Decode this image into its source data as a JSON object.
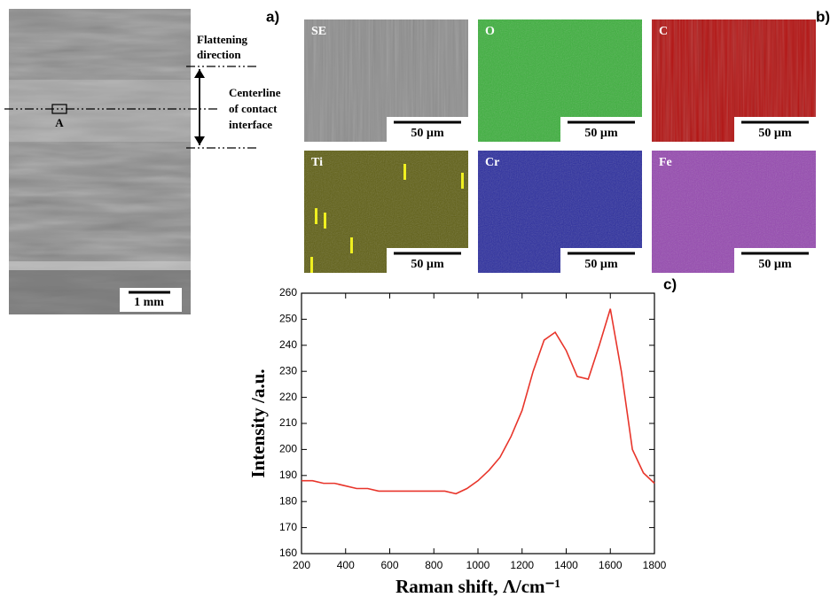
{
  "figure": {
    "panel_labels": [
      "a)",
      "b)",
      "c)"
    ],
    "sem": {
      "marker": "A",
      "scale_bar": "1 mm"
    },
    "annotations": {
      "flattening": [
        "Flattening",
        "direction"
      ],
      "centerline": [
        "Centerline",
        "of contact",
        "interface"
      ]
    },
    "maps": [
      {
        "label": "SE",
        "scale_bar": "50 µm"
      },
      {
        "label": "O",
        "scale_bar": "50 µm"
      },
      {
        "label": "C",
        "scale_bar": "50 µm"
      },
      {
        "label": "Ti",
        "scale_bar": "50 µm"
      },
      {
        "label": "Cr",
        "scale_bar": "50 µm"
      },
      {
        "label": "Fe",
        "scale_bar": "50 µm"
      }
    ]
  },
  "chart_data": {
    "type": "line",
    "x_label": "Raman shift, Λ/cm⁻¹",
    "y_label": "Intensity /a.u.",
    "xlim": [
      200,
      1800
    ],
    "ylim": [
      160,
      260
    ],
    "xticks": [
      200,
      400,
      600,
      800,
      1000,
      1200,
      1400,
      1600,
      1800
    ],
    "yticks": [
      160,
      170,
      180,
      190,
      200,
      210,
      220,
      230,
      240,
      250,
      260
    ],
    "series": [
      {
        "color": "#e8352b",
        "x": [
          200,
          250,
          300,
          350,
          400,
          450,
          500,
          550,
          600,
          650,
          700,
          750,
          800,
          850,
          900,
          950,
          1000,
          1050,
          1100,
          1150,
          1200,
          1250,
          1300,
          1350,
          1400,
          1450,
          1500,
          1550,
          1600,
          1650,
          1700,
          1750,
          1800
        ],
        "values": [
          188,
          188,
          187,
          187,
          186,
          185,
          185,
          184,
          184,
          184,
          184,
          184,
          184,
          184,
          183,
          185,
          188,
          192,
          197,
          205,
          215,
          230,
          242,
          245,
          238,
          228,
          227,
          240,
          254,
          230,
          200,
          191,
          187
        ]
      }
    ]
  }
}
